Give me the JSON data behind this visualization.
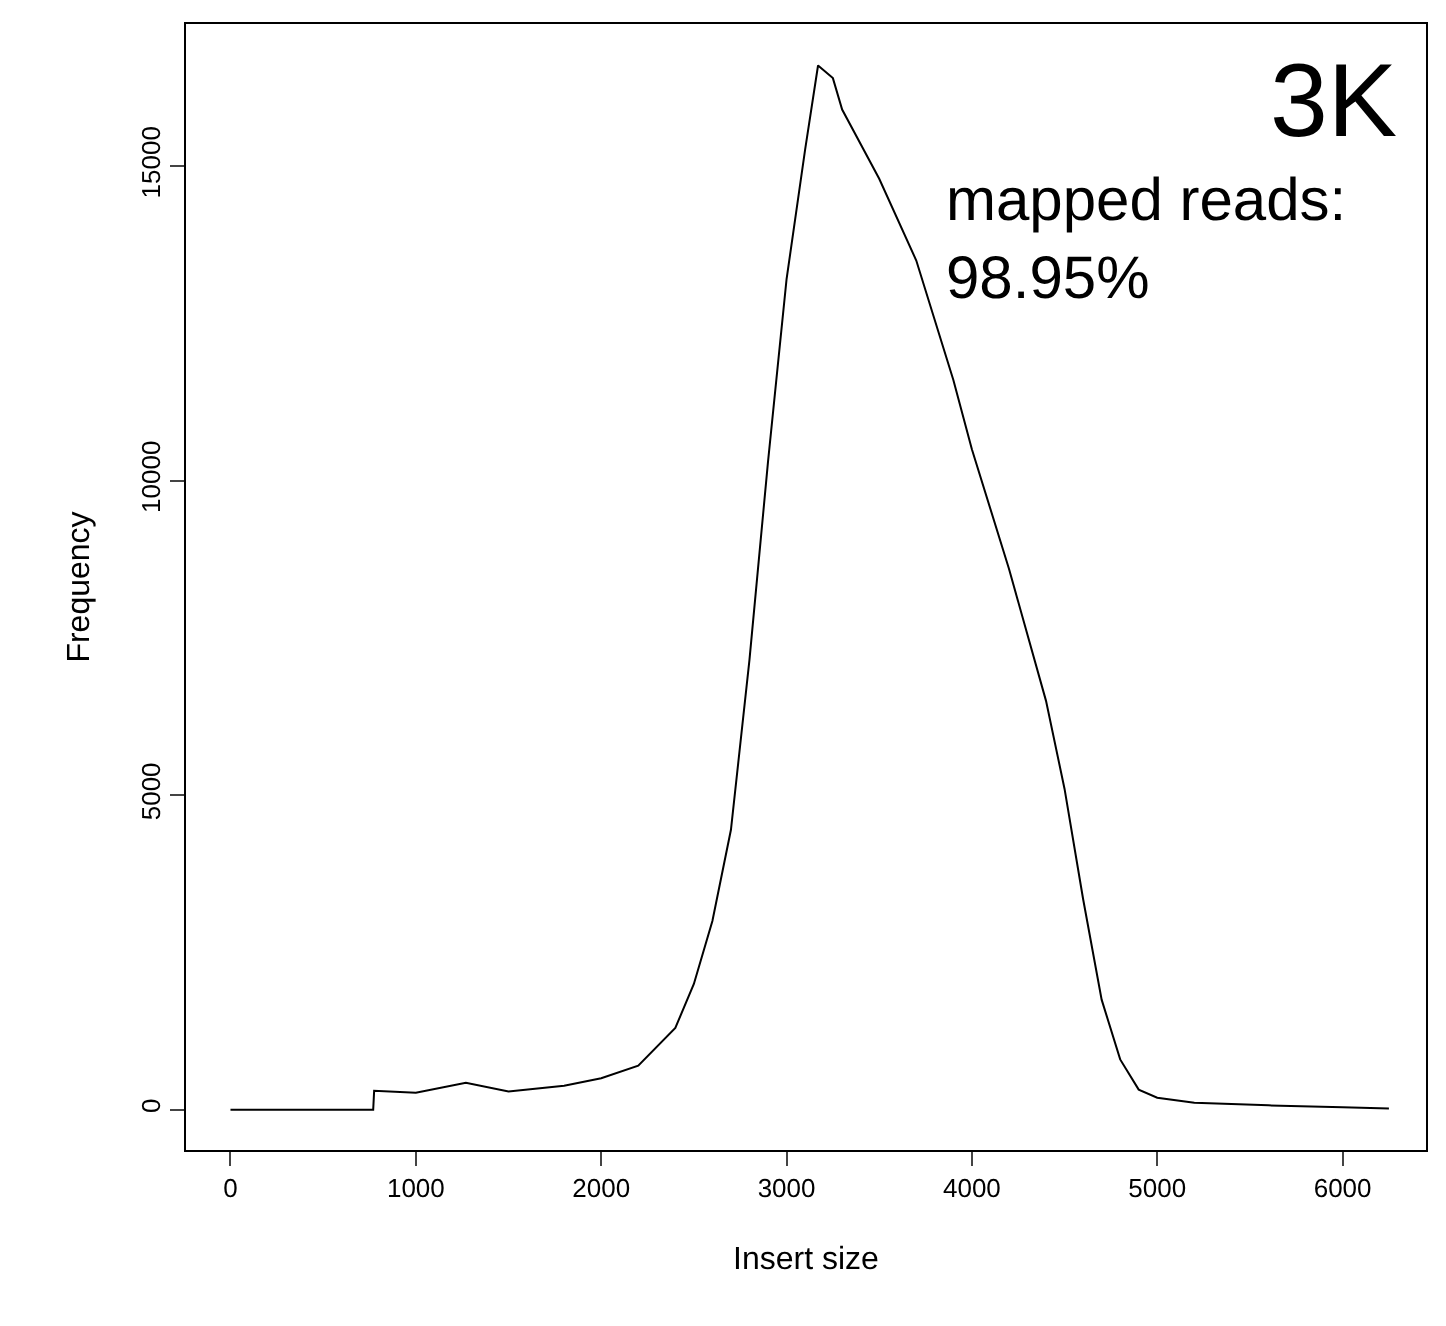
{
  "chart_data": {
    "type": "line",
    "xlabel": "Insert size",
    "ylabel": "Frequency",
    "annotations": [
      "3K",
      "mapped reads:\n98.95%"
    ],
    "x": [
      0,
      770,
      775,
      1000,
      1270,
      1500,
      1800,
      2000,
      2200,
      2400,
      2500,
      2600,
      2700,
      2800,
      2900,
      3000,
      3100,
      3170,
      3250,
      3300,
      3500,
      3700,
      3900,
      4000,
      4200,
      4400,
      4500,
      4600,
      4700,
      4800,
      4900,
      5000,
      5200,
      5600,
      6000,
      6250
    ],
    "series": [
      {
        "color": "#000000",
        "values": [
          0,
          0,
          300,
          270,
          430,
          290,
          380,
          500,
          700,
          1300,
          2000,
          3000,
          4450,
          7150,
          10300,
          13200,
          15260,
          16600,
          16400,
          15900,
          14800,
          13500,
          11600,
          10500,
          8600,
          6500,
          5100,
          3350,
          1750,
          800,
          320,
          190,
          110,
          70,
          40,
          20
        ]
      }
    ],
    "xlim": [
      -240,
      6450
    ],
    "ylim": [
      -640,
      17260
    ],
    "xticks": [
      0,
      1000,
      2000,
      3000,
      4000,
      5000,
      6000
    ],
    "yticks": [
      0,
      5000,
      10000,
      15000
    ],
    "grid": false,
    "marker": "none",
    "line_style": "solid"
  }
}
